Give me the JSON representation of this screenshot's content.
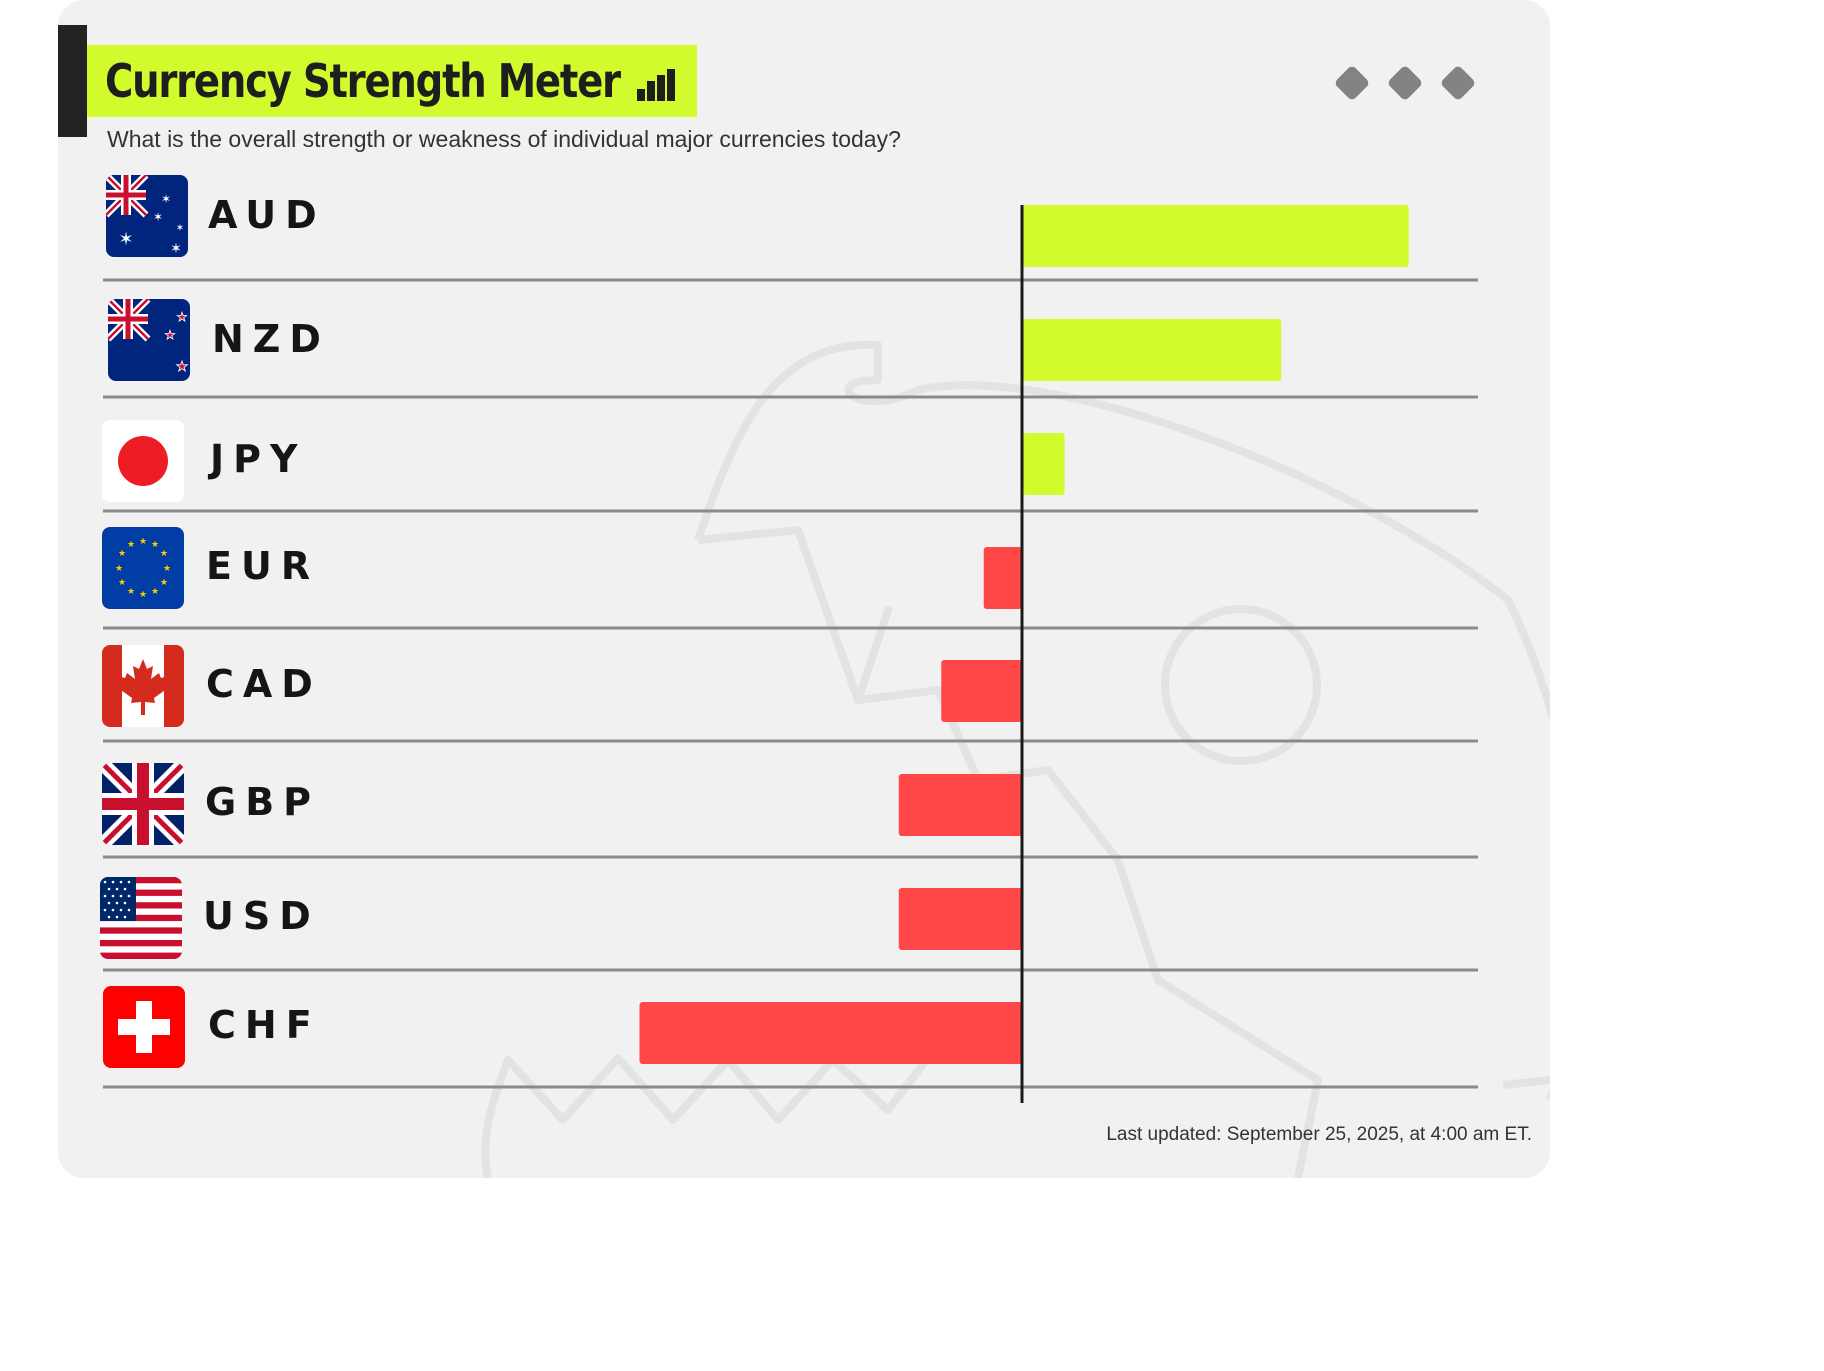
{
  "header": {
    "title": "Currency Strength Meter",
    "subtitle": "What is the overall strength or weakness of individual major currencies today?",
    "title_icon": "bar-chart-icon",
    "menu_icon": "three-diamond-dots-icon"
  },
  "colors": {
    "positive": "#d2fb2d",
    "negative": "#ff4747",
    "title_bg": "#d2fb2d",
    "axis": "#1a1a1a",
    "row_line": "#8a8a8a",
    "card_bg": "#f1f1f1"
  },
  "chart_data": {
    "type": "bar",
    "orientation": "horizontal",
    "title": "Currency Strength Meter",
    "subtitle": "What is the overall strength or weakness of individual major currencies today?",
    "categories": [
      "AUD",
      "NZD",
      "JPY",
      "EUR",
      "CAD",
      "GBP",
      "USD",
      "CHF"
    ],
    "values": [
      9.1,
      6.1,
      1.0,
      -0.9,
      -1.9,
      -2.9,
      -2.9,
      -9.0
    ],
    "xlim": [
      -10,
      10
    ],
    "grid": false,
    "legend": "none",
    "flags": [
      "flag-australia-icon",
      "flag-new-zealand-icon",
      "flag-japan-icon",
      "flag-european-union-icon",
      "flag-canada-icon",
      "flag-united-kingdom-icon",
      "flag-united-states-icon",
      "flag-switzerland-icon"
    ]
  },
  "footer": {
    "last_updated": "Last updated: September 25, 2025, at 4:00 am ET."
  }
}
